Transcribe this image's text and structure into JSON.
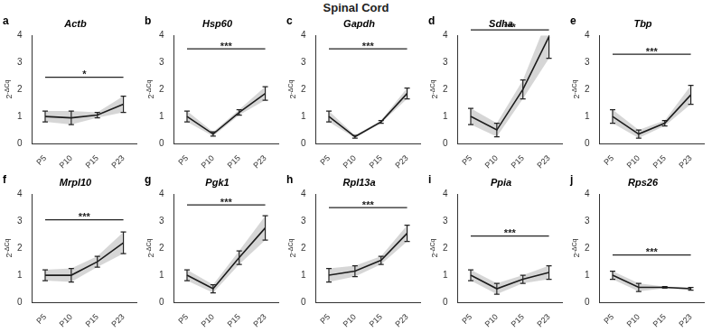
{
  "title": "Spinal Cord",
  "chart_data": [
    {
      "type": "line",
      "panel": "a",
      "title": "Actb",
      "y_label": "2-ΔCq",
      "categories": [
        "P5",
        "P10",
        "P15",
        "P23"
      ],
      "values": [
        1.0,
        0.95,
        1.05,
        1.45
      ],
      "error": [
        0.2,
        0.25,
        0.1,
        0.3
      ],
      "color": "#222222",
      "ylim": [
        0,
        4
      ],
      "yticks": [
        0,
        1,
        2,
        3,
        4
      ],
      "grid": false,
      "annotations": [
        {
          "text": "*",
          "from": "P5",
          "to": "P23",
          "y": 2.45
        }
      ]
    },
    {
      "type": "line",
      "panel": "b",
      "title": "Hsp60",
      "y_label": "2-ΔCq",
      "categories": [
        "P5",
        "P10",
        "P15",
        "P23"
      ],
      "values": [
        1.0,
        0.35,
        1.15,
        1.85
      ],
      "error": [
        0.2,
        0.08,
        0.1,
        0.25
      ],
      "color": "#222222",
      "ylim": [
        0,
        4
      ],
      "yticks": [
        0,
        1,
        2,
        3,
        4
      ],
      "grid": false,
      "annotations": [
        {
          "text": "***",
          "from": "P5",
          "to": "P23",
          "y": 3.5
        }
      ]
    },
    {
      "type": "line",
      "panel": "c",
      "title": "Gapdh",
      "y_label": "2-ΔCq",
      "categories": [
        "P5",
        "P10",
        "P15",
        "P23"
      ],
      "values": [
        1.0,
        0.25,
        0.8,
        1.85
      ],
      "error": [
        0.2,
        0.05,
        0.05,
        0.2
      ],
      "color": "#222222",
      "ylim": [
        0,
        4
      ],
      "yticks": [
        0,
        1,
        2,
        3,
        4
      ],
      "grid": false,
      "annotations": [
        {
          "text": "***",
          "from": "P5",
          "to": "P23",
          "y": 3.5
        }
      ]
    },
    {
      "type": "line",
      "panel": "d",
      "title": "Sdha",
      "y_label": "2-ΔCq",
      "categories": [
        "P5",
        "P10",
        "P15",
        "P23"
      ],
      "values": [
        1.0,
        0.5,
        2.0,
        3.95
      ],
      "error": [
        0.3,
        0.25,
        0.35,
        0.8
      ],
      "color": "#222222",
      "ylim": [
        0,
        4
      ],
      "yticks": [
        0,
        1,
        2,
        3,
        4
      ],
      "grid": false,
      "annotations": [
        {
          "text": "***",
          "from": "P5",
          "to": "P23",
          "y": 4.2
        }
      ]
    },
    {
      "type": "line",
      "panel": "e",
      "title": "Tbp",
      "y_label": "2-ΔCq",
      "categories": [
        "P5",
        "P10",
        "P15",
        "P23"
      ],
      "values": [
        1.0,
        0.35,
        0.75,
        1.8
      ],
      "error": [
        0.25,
        0.15,
        0.1,
        0.35
      ],
      "color": "#222222",
      "ylim": [
        0,
        4
      ],
      "yticks": [
        0,
        1,
        2,
        3,
        4
      ],
      "grid": false,
      "annotations": [
        {
          "text": "***",
          "from": "P5",
          "to": "P23",
          "y": 3.3
        }
      ]
    },
    {
      "type": "line",
      "panel": "f",
      "title": "Mrpl10",
      "y_label": "2-ΔCq",
      "categories": [
        "P5",
        "P10",
        "P15",
        "P23"
      ],
      "values": [
        1.0,
        1.0,
        1.5,
        2.2
      ],
      "error": [
        0.2,
        0.25,
        0.2,
        0.4
      ],
      "color": "#222222",
      "ylim": [
        0,
        4
      ],
      "yticks": [
        0,
        1,
        2,
        3,
        4
      ],
      "grid": false,
      "annotations": [
        {
          "text": "***",
          "from": "P5",
          "to": "P23",
          "y": 3.05
        }
      ]
    },
    {
      "type": "line",
      "panel": "g",
      "title": "Pgk1",
      "y_label": "2-ΔCq",
      "categories": [
        "P5",
        "P10",
        "P15",
        "P23"
      ],
      "values": [
        1.0,
        0.5,
        1.65,
        2.75
      ],
      "error": [
        0.2,
        0.15,
        0.25,
        0.45
      ],
      "color": "#222222",
      "ylim": [
        0,
        4
      ],
      "yticks": [
        0,
        1,
        2,
        3,
        4
      ],
      "grid": false,
      "annotations": [
        {
          "text": "***",
          "from": "P5",
          "to": "P23",
          "y": 3.6
        }
      ]
    },
    {
      "type": "line",
      "panel": "h",
      "title": "Rpl13a",
      "y_label": "2-ΔCq",
      "categories": [
        "P5",
        "P10",
        "P15",
        "P23"
      ],
      "values": [
        1.0,
        1.15,
        1.55,
        2.55
      ],
      "error": [
        0.25,
        0.2,
        0.15,
        0.3
      ],
      "color": "#222222",
      "ylim": [
        0,
        4
      ],
      "yticks": [
        0,
        1,
        2,
        3,
        4
      ],
      "grid": false,
      "annotations": [
        {
          "text": "***",
          "from": "P5",
          "to": "P23",
          "y": 3.5
        }
      ]
    },
    {
      "type": "line",
      "panel": "i",
      "title": "Ppia",
      "y_label": "2-ΔCq",
      "categories": [
        "P5",
        "P10",
        "P15",
        "P23"
      ],
      "values": [
        1.0,
        0.5,
        0.85,
        1.1
      ],
      "error": [
        0.2,
        0.2,
        0.15,
        0.25
      ],
      "color": "#222222",
      "ylim": [
        0,
        4
      ],
      "yticks": [
        0,
        1,
        2,
        3,
        4
      ],
      "grid": false,
      "annotations": [
        {
          "text": "***",
          "from": "P5",
          "to": "P23",
          "y": 2.45
        }
      ]
    },
    {
      "type": "line",
      "panel": "j",
      "title": "Rps26",
      "y_label": "2-ΔCq",
      "categories": [
        "P5",
        "P10",
        "P15",
        "P23"
      ],
      "values": [
        1.0,
        0.55,
        0.55,
        0.5
      ],
      "error": [
        0.15,
        0.15,
        0.03,
        0.05
      ],
      "color": "#222222",
      "ylim": [
        0,
        4
      ],
      "yticks": [
        0,
        1,
        2,
        3,
        4
      ],
      "grid": false,
      "annotations": [
        {
          "text": "***",
          "from": "P5",
          "to": "P23",
          "y": 1.75
        }
      ]
    }
  ]
}
